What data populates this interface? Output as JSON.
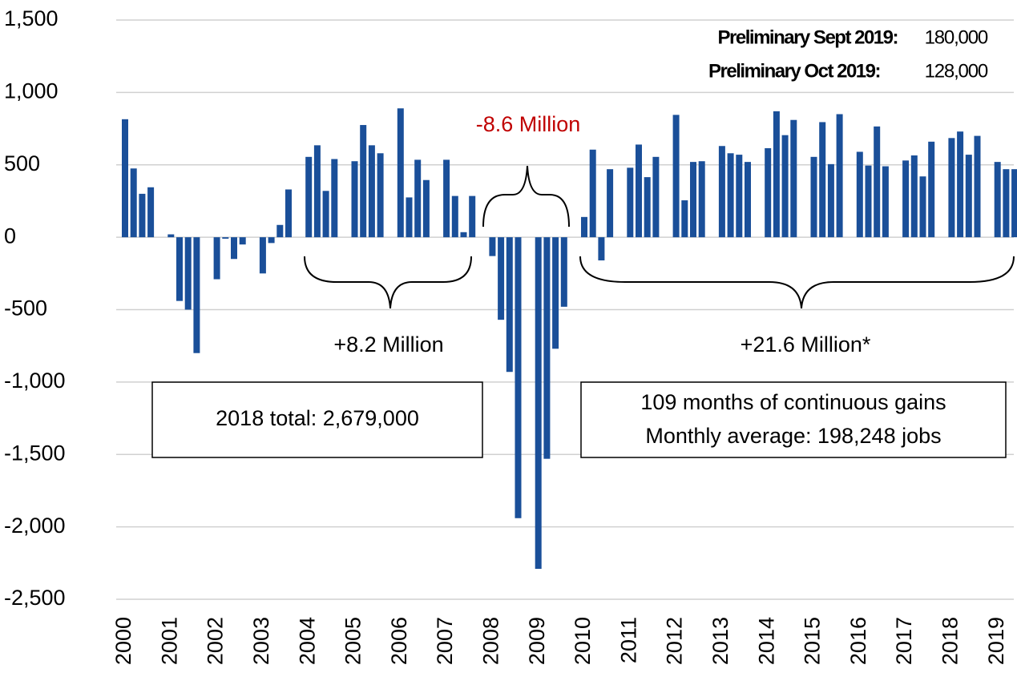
{
  "chart_data": {
    "type": "bar",
    "categories": [
      "2000",
      null,
      null,
      null,
      "2001",
      null,
      null,
      null,
      "2002",
      null,
      null,
      null,
      "2003",
      null,
      null,
      null,
      "2004",
      null,
      null,
      null,
      "2005",
      null,
      null,
      null,
      "2006",
      null,
      null,
      null,
      "2007",
      null,
      null,
      null,
      "2008",
      null,
      null,
      null,
      "2009",
      null,
      null,
      null,
      "2010",
      null,
      null,
      null,
      "2011",
      null,
      null,
      null,
      "2012",
      null,
      null,
      null,
      "2013",
      null,
      null,
      null,
      "2014",
      null,
      null,
      null,
      "2015",
      null,
      null,
      null,
      "2016",
      null,
      null,
      null,
      "2017",
      null,
      null,
      null,
      "2018",
      null,
      null,
      null,
      "2019",
      null,
      null
    ],
    "values": [
      815,
      475,
      300,
      345,
      20,
      -440,
      -500,
      -800,
      -290,
      -10,
      -150,
      -50,
      -250,
      -40,
      85,
      330,
      555,
      635,
      320,
      540,
      525,
      775,
      635,
      580,
      890,
      275,
      535,
      395,
      535,
      285,
      35,
      285,
      -130,
      -570,
      -930,
      -1940,
      -2290,
      -1530,
      -770,
      -480,
      140,
      605,
      -160,
      470,
      480,
      640,
      415,
      555,
      845,
      255,
      520,
      525,
      630,
      580,
      570,
      520,
      615,
      870,
      705,
      810,
      555,
      795,
      505,
      850,
      590,
      495,
      765,
      490,
      530,
      565,
      420,
      660,
      685,
      730,
      570,
      700,
      520,
      470,
      470
    ],
    "color": "#1a4f99",
    "ylim": [
      -2500,
      1500
    ],
    "yticks": [
      {
        "value": -2500,
        "label": "-2,500"
      },
      {
        "value": -2000,
        "label": "-2,000"
      },
      {
        "value": -1500,
        "label": "-1,500"
      },
      {
        "value": -1000,
        "label": "-1,000"
      },
      -500,
      0,
      500,
      {
        "value": 1000,
        "label": "1,000"
      },
      {
        "value": 1500,
        "label": "1,500"
      }
    ],
    "grid": true,
    "annotations": {
      "prelim_sept_label": "Preliminary Sept 2019:",
      "prelim_sept_value": "180,000",
      "prelim_oct_label": "Preliminary Oct 2019:",
      "prelim_oct_value": "128,000",
      "recession": "-8.6 Million",
      "expansion_1": "+8.2 Million",
      "expansion_2": "+21.6 Million*",
      "box_2018": "2018 total: 2,679,000",
      "box_gains_1": "109 months of continuous gains",
      "box_gains_2": "Monthly average: 198,248 jobs"
    }
  }
}
